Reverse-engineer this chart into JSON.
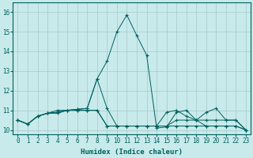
{
  "xlabel": "Humidex (Indice chaleur)",
  "xlim_min": -0.5,
  "xlim_max": 23.5,
  "ylim_min": 9.8,
  "ylim_max": 16.5,
  "background_color": "#c8eaea",
  "grid_color": "#a8c8c8",
  "line_color": "#006060",
  "series": [
    [
      10.5,
      10.3,
      10.7,
      10.85,
      10.9,
      11.0,
      11.05,
      11.1,
      12.6,
      13.5,
      15.0,
      15.85,
      14.8,
      13.8,
      10.1,
      10.15,
      10.9,
      11.0,
      10.5,
      10.9,
      11.1,
      10.5,
      10.5,
      10.0
    ],
    [
      10.5,
      10.3,
      10.7,
      10.85,
      10.9,
      11.0,
      11.05,
      11.1,
      12.6,
      11.1,
      10.2,
      10.2,
      10.2,
      10.2,
      10.2,
      10.9,
      11.0,
      10.7,
      10.5,
      10.2,
      10.2,
      10.2,
      10.2,
      10.0
    ],
    [
      10.5,
      10.3,
      10.7,
      10.85,
      11.0,
      11.0,
      11.0,
      11.0,
      11.0,
      10.2,
      10.2,
      10.2,
      10.2,
      10.2,
      10.2,
      10.2,
      10.5,
      10.5,
      10.5,
      10.5,
      10.5,
      10.5,
      10.5,
      10.0
    ],
    [
      10.5,
      10.3,
      10.7,
      10.85,
      10.85,
      11.0,
      11.0,
      11.0,
      11.0,
      10.2,
      10.2,
      10.2,
      10.2,
      10.2,
      10.2,
      10.2,
      10.2,
      10.2,
      10.2,
      10.2,
      10.2,
      10.2,
      10.2,
      10.0
    ]
  ],
  "xtick_labels": [
    "0",
    "1",
    "2",
    "3",
    "4",
    "5",
    "6",
    "7",
    "8",
    "9",
    "10",
    "11",
    "12",
    "13",
    "14",
    "15",
    "16",
    "17",
    "18",
    "19",
    "20",
    "21",
    "22",
    "23"
  ],
  "yticks": [
    10,
    11,
    12,
    13,
    14,
    15,
    16
  ],
  "tick_fontsize": 5.5,
  "label_fontsize": 6.5
}
